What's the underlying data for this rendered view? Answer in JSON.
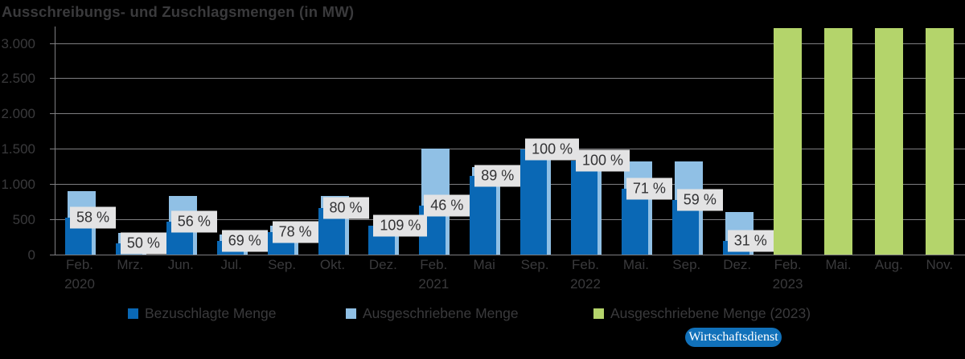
{
  "title": "Ausschreibungs- und Zuschlagsmengen (in MW)",
  "chart_data": {
    "type": "bar",
    "title": "Ausschreibungs- und Zuschlagsmengen (in MW)",
    "unit": "MW",
    "categories": [
      {
        "month": "Feb.",
        "year": "2020"
      },
      {
        "month": "Mrz."
      },
      {
        "month": "Jun."
      },
      {
        "month": "Jul."
      },
      {
        "month": "Sep."
      },
      {
        "month": "Okt."
      },
      {
        "month": "Dez."
      },
      {
        "month": "Feb.",
        "year": "2021"
      },
      {
        "month": "Mai"
      },
      {
        "month": "Sep."
      },
      {
        "month": "Feb.",
        "year": "2022"
      },
      {
        "month": "Mai."
      },
      {
        "month": "Sep."
      },
      {
        "month": "Dez."
      },
      {
        "month": "Feb.",
        "year": "2023"
      },
      {
        "month": "Mai."
      },
      {
        "month": "Aug."
      },
      {
        "month": "Nov."
      }
    ],
    "series": [
      {
        "name": "Ausgeschriebene Menge",
        "role": "tendered",
        "color": "#90c0e5",
        "values": [
          900,
          300,
          826,
          276,
          400,
          826,
          367,
          1500,
          1243,
          1492,
          1332,
          1320,
          1320,
          604,
          null,
          null,
          null,
          null
        ]
      },
      {
        "name": "Bezuschlagte Menge",
        "role": "awarded",
        "color": "#0a68b5",
        "values": [
          523,
          151,
          464,
          191,
          310,
          659,
          400,
          691,
          1110,
          1492,
          1332,
          931,
          772,
          189,
          null,
          null,
          null,
          null
        ]
      },
      {
        "name": "Ausgeschriebene Menge (2023)",
        "role": "tendered-2023",
        "color": "#b4d46b",
        "values": [
          null,
          null,
          null,
          null,
          null,
          null,
          null,
          null,
          null,
          null,
          null,
          null,
          null,
          null,
          3210,
          3210,
          3210,
          3210
        ]
      }
    ],
    "pct_labels": [
      "58 %",
      "50 %",
      "56 %",
      "69 %",
      "78 %",
      "80 %",
      "109 %",
      "46 %",
      "89 %",
      "100 %",
      "100 %",
      "71 %",
      "59 %",
      "31 %",
      null,
      null,
      null,
      null
    ],
    "ylim": [
      0,
      3000
    ],
    "ytick_labels": [
      "0",
      "500",
      "1.000",
      "1.500",
      "2.000",
      "2.500",
      "3.000"
    ],
    "ytick_values": [
      0,
      500,
      1000,
      1500,
      2000,
      2500,
      3000
    ],
    "grid": true,
    "legend_position": "bottom",
    "label_bg_color": "#e3e3e4",
    "axis_color": "#7e7e81",
    "text_color": "#3a3a3c"
  },
  "legend": {
    "items": [
      {
        "label": "Bezuschlagte Menge",
        "color": "#0a68b5"
      },
      {
        "label": "Ausgeschriebene Menge",
        "color": "#90c0e5"
      },
      {
        "label": "Ausgeschriebene Menge (2023)",
        "color": "#b4d46b"
      }
    ]
  },
  "badge": {
    "label": "Wirtschaftsdienst",
    "color": "#1171ba"
  }
}
